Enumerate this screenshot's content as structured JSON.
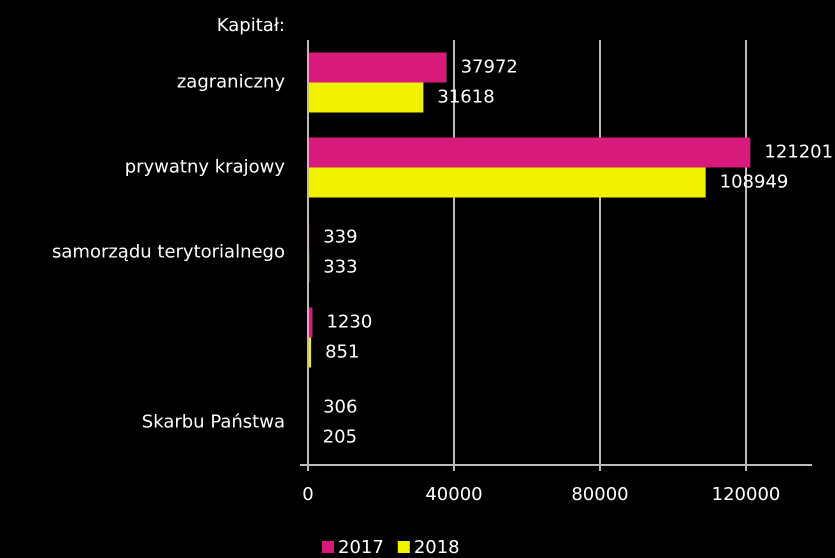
{
  "chart_data": {
    "type": "bar",
    "orientation": "horizontal",
    "annotation": "Kapitał:",
    "categories": [
      "zagraniczny",
      "prywatny krajowy",
      "samorządu terytorialnego",
      null,
      "Skarbu Państwa"
    ],
    "series": [
      {
        "name": "2017",
        "color": "#d81b7a",
        "values": [
          37972,
          121201,
          339,
          1230,
          306
        ]
      },
      {
        "name": "2018",
        "color": "#f2f200",
        "values": [
          31618,
          108949,
          333,
          851,
          205
        ]
      }
    ],
    "xlim": [
      0,
      140000
    ],
    "xticks": [
      0,
      40000,
      80000,
      120000
    ],
    "grid": true,
    "legend": "bottom"
  }
}
